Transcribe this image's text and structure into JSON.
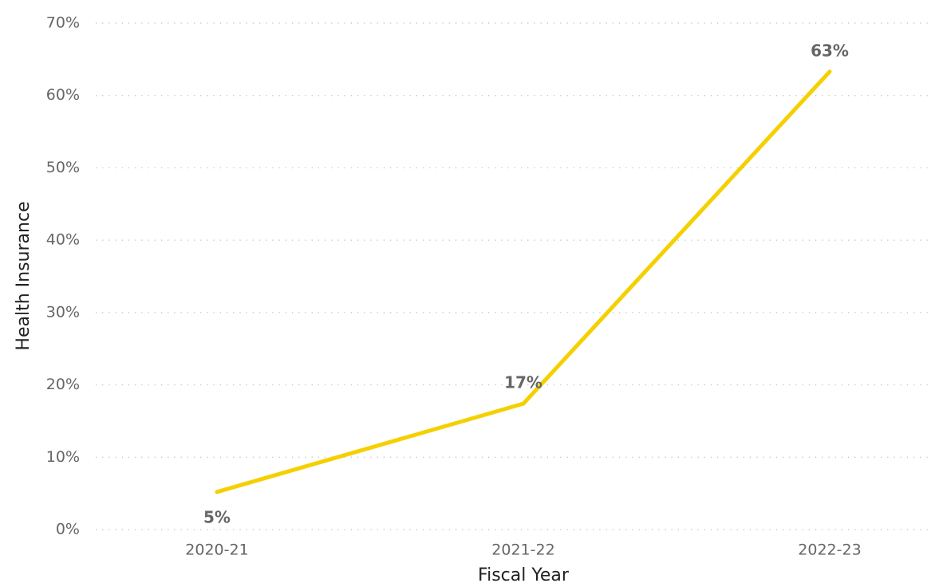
{
  "chart_data": {
    "type": "line",
    "x_label": "Fiscal Year",
    "y_label": "Health Insurance",
    "categories": [
      "2020-21",
      "2021-22",
      "2022-23"
    ],
    "series": [
      {
        "name": "Health Insurance",
        "color": "#f5d000",
        "values": [
          5.2,
          17.4,
          63.3
        ],
        "value_labels": [
          "5%",
          "17%",
          "63%"
        ]
      }
    ],
    "ylim": [
      0,
      70
    ],
    "yticks": [
      {
        "value": 0,
        "label": "0%"
      },
      {
        "value": 10,
        "label": "10%"
      },
      {
        "value": 20,
        "label": "20%"
      },
      {
        "value": 30,
        "label": "30%"
      },
      {
        "value": 40,
        "label": "40%"
      },
      {
        "value": 50,
        "label": "50%"
      },
      {
        "value": 60,
        "label": "60%"
      },
      {
        "value": 70,
        "label": "70%"
      }
    ],
    "grid": true
  }
}
